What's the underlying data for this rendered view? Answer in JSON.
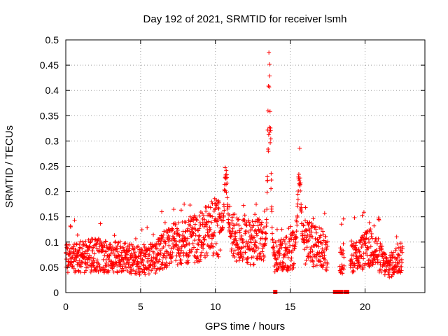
{
  "chart_data": {
    "type": "scatter",
    "title": "Day 192 of 2021, SRMTID for receiver lsmh",
    "xlabel": "GPS time / hours",
    "ylabel": "SRMTID / TECUs",
    "xlim": [
      0,
      24
    ],
    "ylim": [
      0,
      0.5
    ],
    "x_ticks": [
      0,
      5,
      10,
      15,
      20
    ],
    "y_ticks": [
      0,
      0.05,
      0.1,
      0.15,
      0.2,
      0.25,
      0.3,
      0.35,
      0.4,
      0.45,
      0.5
    ],
    "x_tick_labels": [
      "0",
      "5",
      "10",
      "15",
      "20"
    ],
    "y_tick_labels": [
      "0",
      "0.05",
      "0.1",
      "0.15",
      "0.2",
      "0.25",
      "0.3",
      "0.35",
      "0.4",
      "0.45",
      "0.5"
    ],
    "grid": true,
    "marker": "+",
    "marker_color": "#ff0000",
    "series": [
      {
        "name": "SRMTID",
        "profile": [
          {
            "t": 0.0,
            "y": 0.065
          },
          {
            "t": 1.0,
            "y": 0.07
          },
          {
            "t": 2.0,
            "y": 0.075
          },
          {
            "t": 3.0,
            "y": 0.07
          },
          {
            "t": 4.0,
            "y": 0.07
          },
          {
            "t": 5.0,
            "y": 0.06
          },
          {
            "t": 6.0,
            "y": 0.07
          },
          {
            "t": 7.0,
            "y": 0.095
          },
          {
            "t": 8.0,
            "y": 0.1
          },
          {
            "t": 9.0,
            "y": 0.11
          },
          {
            "t": 10.0,
            "y": 0.13
          },
          {
            "t": 11.0,
            "y": 0.11
          },
          {
            "t": 12.0,
            "y": 0.1
          },
          {
            "t": 13.0,
            "y": 0.1
          },
          {
            "t": 14.0,
            "y": 0.07
          },
          {
            "t": 15.0,
            "y": 0.08
          },
          {
            "t": 16.0,
            "y": 0.1
          },
          {
            "t": 17.0,
            "y": 0.09
          },
          {
            "t": 18.0,
            "y": 0.065
          },
          {
            "t": 19.5,
            "y": 0.075
          },
          {
            "t": 20.5,
            "y": 0.09
          },
          {
            "t": 21.5,
            "y": 0.05
          },
          {
            "t": 22.5,
            "y": 0.07
          }
        ],
        "peaks": [
          {
            "t": 10.7,
            "y": 0.265,
            "note": "spike near 10.7 h"
          },
          {
            "t": 13.6,
            "y": 0.49,
            "note": "maximum near 13.6 h"
          },
          {
            "t": 15.6,
            "y": 0.3,
            "note": "spike near 15.6 h"
          }
        ],
        "data_gaps_hours": [
          [
            17.5,
            18.3
          ],
          [
            18.6,
            19.0
          ]
        ]
      }
    ],
    "zero_markers_x": [
      14.0,
      18.0,
      18.2,
      18.4,
      18.7,
      18.8
    ]
  }
}
